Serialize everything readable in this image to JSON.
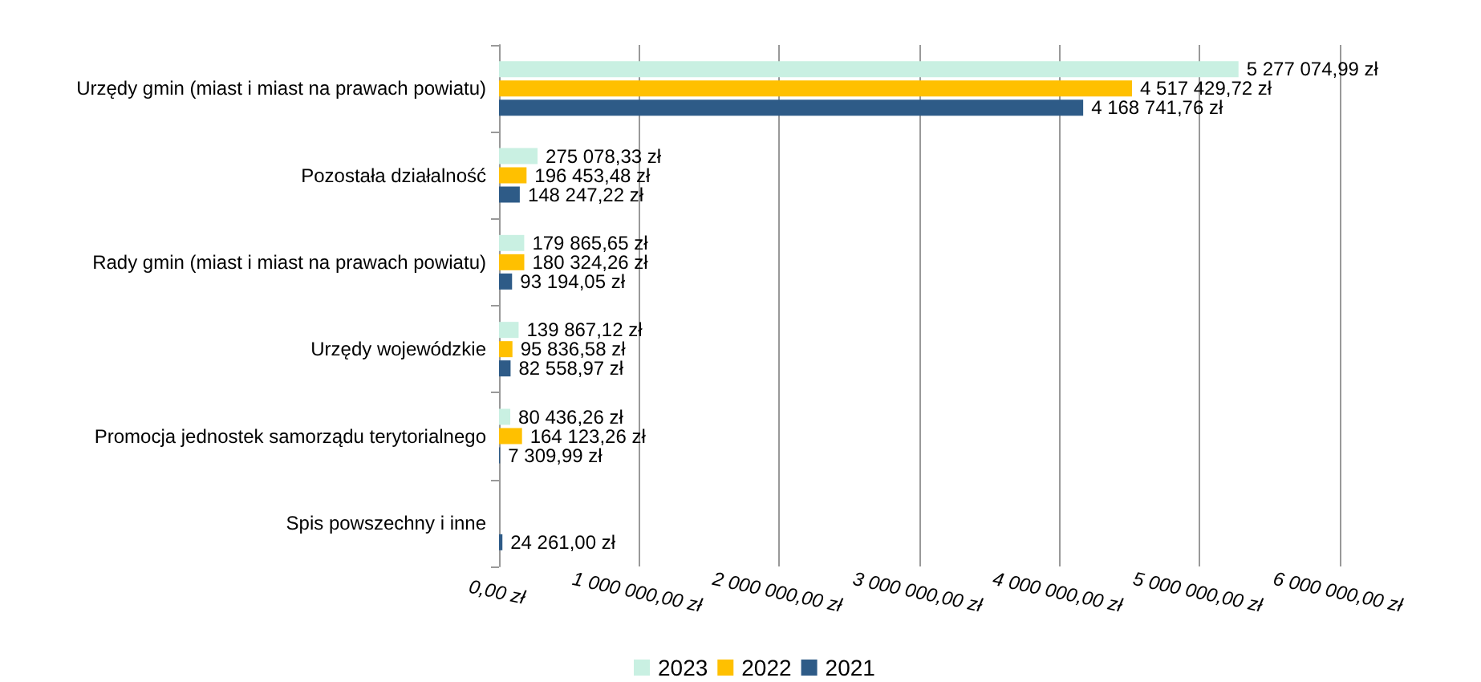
{
  "chart_data": {
    "type": "bar",
    "orientation": "horizontal",
    "categories": [
      "Urzędy gmin (miast i miast na prawach powiatu)",
      "Pozostała działalność",
      "Rady gmin (miast i miast na prawach powiatu)",
      "Urzędy wojewódzkie",
      "Promocja jednostek samorządu terytorialnego",
      "Spis powszechny i inne"
    ],
    "series": [
      {
        "name": "2023",
        "color": "#c9f0e2",
        "values": [
          5277074.99,
          275078.33,
          179865.65,
          139867.12,
          80436.26,
          null
        ],
        "value_labels": [
          "5 277 074,99 zł",
          "275 078,33 zł",
          "179 865,65 zł",
          "139 867,12 zł",
          "80 436,26 zł",
          null
        ]
      },
      {
        "name": "2022",
        "color": "#ffc000",
        "values": [
          4517429.72,
          196453.48,
          180324.26,
          95836.58,
          164123.26,
          null
        ],
        "value_labels": [
          "4 517 429,72 zł",
          "196 453,48 zł",
          "180 324,26 zł",
          "95 836,58 zł",
          "164 123,26 zł",
          null
        ]
      },
      {
        "name": "2021",
        "color": "#2e5b87",
        "values": [
          4168741.76,
          148247.22,
          93194.05,
          82558.97,
          7309.99,
          24261.0
        ],
        "value_labels": [
          "4 168 741,76 zł",
          "148 247,22 zł",
          "93 194,05 zł",
          "82 558,97 zł",
          "7 309,99 zł",
          "24 261,00 zł"
        ]
      }
    ],
    "xlim": [
      0,
      6000000
    ],
    "xticks": [
      {
        "value": 0,
        "label": "0,00 zł"
      },
      {
        "value": 1000000,
        "label": "1 000 000,00 zł"
      },
      {
        "value": 2000000,
        "label": "2 000 000,00 zł"
      },
      {
        "value": 3000000,
        "label": "3 000 000,00 zł"
      },
      {
        "value": 4000000,
        "label": "4 000 000,00 zł"
      },
      {
        "value": 5000000,
        "label": "5 000 000,00 zł"
      },
      {
        "value": 6000000,
        "label": "6 000 000,00 zł"
      }
    ],
    "grid": "x",
    "legend": "bottom"
  }
}
